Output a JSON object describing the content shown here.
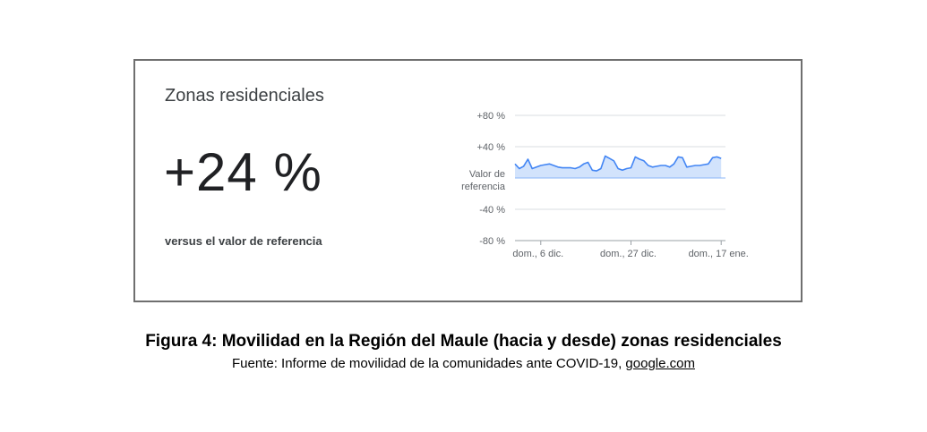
{
  "card": {
    "title": "Zonas residenciales",
    "big_value": "+24 %",
    "sub_label": "versus el valor de referencia"
  },
  "chart_data": {
    "type": "area",
    "ylim": [
      -80,
      80
    ],
    "y_ticks": [
      {
        "value": 80,
        "label": "+80 %"
      },
      {
        "value": 40,
        "label": "+40 %"
      },
      {
        "value": 0,
        "label": "Valor de referencia"
      },
      {
        "value": -40,
        "label": "-40 %"
      },
      {
        "value": -80,
        "label": "-80 %"
      }
    ],
    "x_ticks": [
      {
        "x": 6,
        "label": "dom., 6 dic."
      },
      {
        "x": 27,
        "label": "dom., 27 dic."
      },
      {
        "x": 48,
        "label": "dom., 17 ene."
      }
    ],
    "x_range": [
      0,
      49
    ],
    "series": [
      {
        "color": "#4285f4",
        "fill": "#d2e3fc",
        "values": [
          18,
          12,
          15,
          24,
          12,
          14,
          16,
          17,
          18,
          16,
          14,
          13,
          13,
          13,
          12,
          14,
          18,
          20,
          10,
          9,
          12,
          28,
          25,
          22,
          12,
          10,
          12,
          13,
          27,
          24,
          22,
          16,
          14,
          15,
          16,
          16,
          14,
          18,
          27,
          26,
          14,
          15,
          16,
          16,
          17,
          18,
          26,
          27,
          25
        ]
      }
    ]
  },
  "caption": {
    "title": "Figura 4: Movilidad en la Región del Maule (hacia y desde) zonas residenciales",
    "source_prefix": "Fuente: Informe de movilidad de la comunidades ante COVID-19, ",
    "source_link": "google.com"
  }
}
